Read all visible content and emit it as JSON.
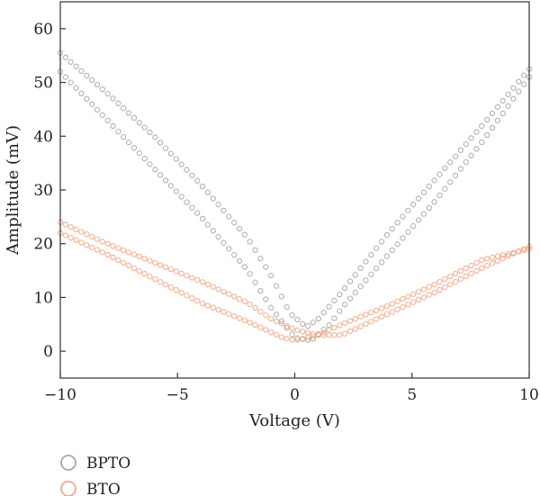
{
  "chart_data": {
    "type": "scatter",
    "title": "",
    "xlabel": "Voltage (V)",
    "ylabel": "Amplitude (mV)",
    "xlim": [
      -10,
      10
    ],
    "ylim": [
      -5,
      65
    ],
    "xticks": [
      -10,
      -5,
      0,
      5,
      10
    ],
    "xtick_labels": [
      "−10",
      "−5",
      "0",
      "5",
      "10"
    ],
    "yticks": [
      0,
      10,
      20,
      30,
      40,
      50,
      60
    ],
    "ytick_labels": [
      "0",
      "10",
      "20",
      "30",
      "40",
      "50",
      "60"
    ],
    "grid": false,
    "legend_position": "bottom-left",
    "series": [
      {
        "name": "BPTO",
        "color": "#a9a9a9",
        "marker": "open-circle",
        "branches": [
          {
            "x": [
              -10,
              -8,
              -6,
              -4,
              -2,
              -1,
              -0.2,
              0.5,
              1,
              2,
              4,
              6,
              8,
              10
            ],
            "y": [
              55.5,
              48,
              40,
              31,
              21,
              14,
              7,
              4.5,
              6,
              11,
              22,
              32,
              42,
              52.5
            ]
          },
          {
            "x": [
              -10,
              -8,
              -6,
              -4,
              -2,
              -1,
              0,
              0.7,
              1.5,
              2,
              4,
              6,
              8,
              10
            ],
            "y": [
              52,
              43,
              34,
              25,
              15,
              8,
              2.5,
              2,
              5,
              8,
              18,
              28,
              39,
              51
            ]
          }
        ]
      },
      {
        "name": "BTO",
        "color": "#f2a885",
        "marker": "open-circle",
        "branches": [
          {
            "x": [
              -10,
              -8,
              -6,
              -4,
              -2,
              -1,
              0,
              0.5,
              1,
              2,
              4,
              6,
              8,
              10
            ],
            "y": [
              24,
              20,
              16.5,
              13,
              9,
              6,
              4,
              3.5,
              3,
              3,
              7,
              11,
              15.5,
              19.5
            ]
          },
          {
            "x": [
              -10,
              -8,
              -6,
              -4,
              -2,
              -1,
              -0.5,
              0,
              1,
              2,
              4,
              6,
              8,
              10
            ],
            "y": [
              22,
              18,
              13.5,
              9,
              5.5,
              3.5,
              2.5,
              2,
              3,
              5,
              8.5,
              12.5,
              17,
              19
            ]
          }
        ]
      }
    ]
  }
}
